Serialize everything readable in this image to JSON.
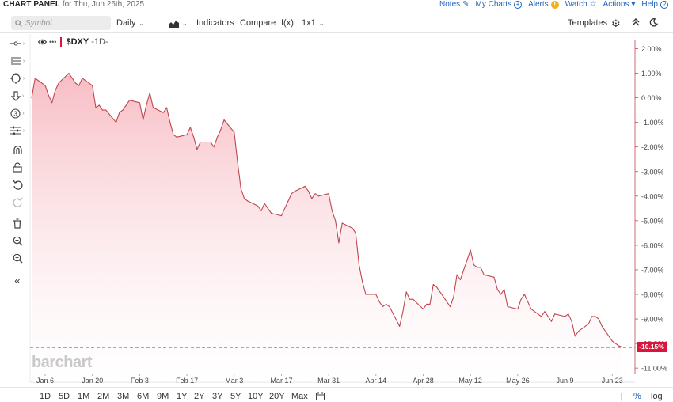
{
  "header": {
    "title": "CHART PANEL",
    "subtitle": "for Thu, Jun 26th, 2025",
    "nav": [
      {
        "label": "Notes",
        "icon": "notes-icon",
        "glyph": "✎"
      },
      {
        "label": "My Charts",
        "icon": "plus-circle-icon",
        "glyph": "+"
      },
      {
        "label": "Alerts",
        "icon": "alert-icon",
        "glyph": "!"
      },
      {
        "label": "Watch",
        "icon": "star-icon",
        "glyph": "☆"
      },
      {
        "label": "Actions",
        "icon": "caret-down-icon",
        "glyph": "▾"
      },
      {
        "label": "Help",
        "icon": "help-icon",
        "glyph": "?"
      }
    ]
  },
  "toolbar": {
    "symbol_placeholder": "Symbol...",
    "interval": "Daily",
    "indicators": "Indicators",
    "compare": "Compare",
    "fx": "f(x)",
    "layout": "1x1",
    "templates": "Templates"
  },
  "legend": {
    "symbol": "$DXY",
    "interval": "-1D-"
  },
  "watermark": "barchart",
  "last_value_label": "-10.15%",
  "ranges": [
    "1D",
    "5D",
    "1M",
    "2M",
    "3M",
    "6M",
    "9M",
    "1Y",
    "2Y",
    "3Y",
    "5Y",
    "10Y",
    "20Y",
    "Max"
  ],
  "bottom_right": {
    "percent": "%",
    "log": "log"
  },
  "colors": {
    "line": "#c0474f",
    "fill_top": "#f7b9c1",
    "last_line": "#d9163b"
  },
  "chart_data": {
    "type": "area",
    "symbol": "$DXY",
    "y_unit": "percent change",
    "ylim": [
      -11,
      2
    ],
    "y_ticks": [
      "2.00%",
      "1.00%",
      "0.00%",
      "-1.00%",
      "-2.00%",
      "-3.00%",
      "-4.00%",
      "-5.00%",
      "-6.00%",
      "-7.00%",
      "-8.00%",
      "-9.00%",
      "-10.00%",
      "-11.00%"
    ],
    "x_ticks": [
      "Jan 6",
      "Jan 20",
      "Feb 3",
      "Feb 17",
      "Mar 3",
      "Mar 17",
      "Mar 31",
      "Apr 14",
      "Apr 28",
      "May 12",
      "May 26",
      "Jun 9",
      "Jun 23"
    ],
    "x_tick_dates": [
      "2025-01-06",
      "2025-01-20",
      "2025-02-03",
      "2025-02-17",
      "2025-03-03",
      "2025-03-17",
      "2025-03-31",
      "2025-04-14",
      "2025-04-28",
      "2025-05-12",
      "2025-05-26",
      "2025-06-09",
      "2025-06-23"
    ],
    "x_range": [
      "2025-01-02",
      "2025-06-26"
    ],
    "last_value": -10.15,
    "grid": false,
    "legend_placement": "top-left",
    "series": [
      {
        "values": [
          [
            "2025-01-02",
            0.0
          ],
          [
            "2025-01-03",
            0.8
          ],
          [
            "2025-01-06",
            0.5
          ],
          [
            "2025-01-07",
            0.1
          ],
          [
            "2025-01-08",
            -0.2
          ],
          [
            "2025-01-09",
            0.3
          ],
          [
            "2025-01-10",
            0.6
          ],
          [
            "2025-01-13",
            1.0
          ],
          [
            "2025-01-14",
            0.8
          ],
          [
            "2025-01-15",
            0.6
          ],
          [
            "2025-01-16",
            0.5
          ],
          [
            "2025-01-17",
            0.8
          ],
          [
            "2025-01-20",
            0.5
          ],
          [
            "2025-01-21",
            -0.4
          ],
          [
            "2025-01-22",
            -0.3
          ],
          [
            "2025-01-23",
            -0.5
          ],
          [
            "2025-01-24",
            -0.5
          ],
          [
            "2025-01-27",
            -1.0
          ],
          [
            "2025-01-28",
            -0.6
          ],
          [
            "2025-01-29",
            -0.5
          ],
          [
            "2025-01-30",
            -0.3
          ],
          [
            "2025-01-31",
            -0.1
          ],
          [
            "2025-02-03",
            -0.2
          ],
          [
            "2025-02-04",
            -0.9
          ],
          [
            "2025-02-05",
            -0.3
          ],
          [
            "2025-02-06",
            0.2
          ],
          [
            "2025-02-07",
            -0.4
          ],
          [
            "2025-02-10",
            -0.6
          ],
          [
            "2025-02-11",
            -0.4
          ],
          [
            "2025-02-12",
            -1.0
          ],
          [
            "2025-02-13",
            -1.5
          ],
          [
            "2025-02-14",
            -1.6
          ],
          [
            "2025-02-17",
            -1.5
          ],
          [
            "2025-02-18",
            -1.2
          ],
          [
            "2025-02-19",
            -1.6
          ],
          [
            "2025-02-20",
            -2.1
          ],
          [
            "2025-02-21",
            -1.8
          ],
          [
            "2025-02-24",
            -1.8
          ],
          [
            "2025-02-25",
            -2.0
          ],
          [
            "2025-02-26",
            -1.6
          ],
          [
            "2025-02-27",
            -1.3
          ],
          [
            "2025-02-28",
            -0.9
          ],
          [
            "2025-03-03",
            -1.4
          ],
          [
            "2025-03-04",
            -2.6
          ],
          [
            "2025-03-05",
            -3.7
          ],
          [
            "2025-03-06",
            -4.1
          ],
          [
            "2025-03-07",
            -4.2
          ],
          [
            "2025-03-10",
            -4.4
          ],
          [
            "2025-03-11",
            -4.6
          ],
          [
            "2025-03-12",
            -4.3
          ],
          [
            "2025-03-13",
            -4.5
          ],
          [
            "2025-03-14",
            -4.7
          ],
          [
            "2025-03-17",
            -4.8
          ],
          [
            "2025-03-18",
            -4.5
          ],
          [
            "2025-03-19",
            -4.2
          ],
          [
            "2025-03-20",
            -3.9
          ],
          [
            "2025-03-21",
            -3.8
          ],
          [
            "2025-03-24",
            -3.6
          ],
          [
            "2025-03-25",
            -3.8
          ],
          [
            "2025-03-26",
            -4.1
          ],
          [
            "2025-03-27",
            -3.9
          ],
          [
            "2025-03-28",
            -4.0
          ],
          [
            "2025-03-31",
            -3.9
          ],
          [
            "2025-04-01",
            -4.6
          ],
          [
            "2025-04-02",
            -5.0
          ],
          [
            "2025-04-03",
            -5.9
          ],
          [
            "2025-04-04",
            -5.1
          ],
          [
            "2025-04-07",
            -5.3
          ],
          [
            "2025-04-08",
            -5.5
          ],
          [
            "2025-04-09",
            -6.8
          ],
          [
            "2025-04-10",
            -7.5
          ],
          [
            "2025-04-11",
            -8.0
          ],
          [
            "2025-04-14",
            -8.0
          ],
          [
            "2025-04-15",
            -8.3
          ],
          [
            "2025-04-16",
            -8.5
          ],
          [
            "2025-04-17",
            -8.4
          ],
          [
            "2025-04-18",
            -8.5
          ],
          [
            "2025-04-21",
            -9.3
          ],
          [
            "2025-04-22",
            -8.7
          ],
          [
            "2025-04-23",
            -7.9
          ],
          [
            "2025-04-24",
            -8.2
          ],
          [
            "2025-04-25",
            -8.2
          ],
          [
            "2025-04-28",
            -8.6
          ],
          [
            "2025-04-29",
            -8.4
          ],
          [
            "2025-04-30",
            -8.4
          ],
          [
            "2025-05-01",
            -7.6
          ],
          [
            "2025-05-02",
            -7.7
          ],
          [
            "2025-05-05",
            -8.3
          ],
          [
            "2025-05-06",
            -8.5
          ],
          [
            "2025-05-07",
            -8.1
          ],
          [
            "2025-05-08",
            -7.2
          ],
          [
            "2025-05-09",
            -7.4
          ],
          [
            "2025-05-12",
            -6.2
          ],
          [
            "2025-05-13",
            -6.8
          ],
          [
            "2025-05-14",
            -6.9
          ],
          [
            "2025-05-15",
            -6.9
          ],
          [
            "2025-05-16",
            -7.2
          ],
          [
            "2025-05-19",
            -7.3
          ],
          [
            "2025-05-20",
            -7.8
          ],
          [
            "2025-05-21",
            -8.0
          ],
          [
            "2025-05-22",
            -7.8
          ],
          [
            "2025-05-23",
            -8.5
          ],
          [
            "2025-05-26",
            -8.6
          ],
          [
            "2025-05-27",
            -8.2
          ],
          [
            "2025-05-28",
            -8.0
          ],
          [
            "2025-05-29",
            -8.3
          ],
          [
            "2025-05-30",
            -8.6
          ],
          [
            "2025-06-02",
            -8.9
          ],
          [
            "2025-06-03",
            -8.7
          ],
          [
            "2025-06-04",
            -8.9
          ],
          [
            "2025-06-05",
            -9.1
          ],
          [
            "2025-06-06",
            -8.8
          ],
          [
            "2025-06-09",
            -8.9
          ],
          [
            "2025-06-10",
            -8.8
          ],
          [
            "2025-06-11",
            -9.1
          ],
          [
            "2025-06-12",
            -9.7
          ],
          [
            "2025-06-13",
            -9.5
          ],
          [
            "2025-06-16",
            -9.2
          ],
          [
            "2025-06-17",
            -8.9
          ],
          [
            "2025-06-18",
            -8.9
          ],
          [
            "2025-06-19",
            -9.0
          ],
          [
            "2025-06-20",
            -9.3
          ],
          [
            "2025-06-23",
            -9.9
          ],
          [
            "2025-06-24",
            -10.0
          ],
          [
            "2025-06-25",
            -10.1
          ],
          [
            "2025-06-26",
            -10.15
          ]
        ]
      }
    ]
  }
}
